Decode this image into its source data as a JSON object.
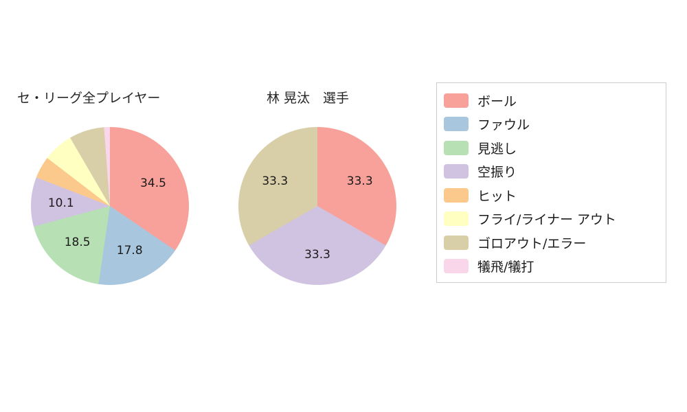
{
  "legend": {
    "items": [
      {
        "label": "ボール",
        "color": "#F8A19A"
      },
      {
        "label": "ファウル",
        "color": "#A8C6DE"
      },
      {
        "label": "見逃し",
        "color": "#B7E1B5"
      },
      {
        "label": "空振り",
        "color": "#D0C3E1"
      },
      {
        "label": "ヒット",
        "color": "#FBC98C"
      },
      {
        "label": "フライ/ライナー アウト",
        "color": "#FFFFC2"
      },
      {
        "label": "ゴロアウト/エラー",
        "color": "#D8CEA8"
      },
      {
        "label": "犠飛/犠打",
        "color": "#FAD6EA"
      }
    ]
  },
  "chart_data": [
    {
      "type": "pie",
      "title": "セ・リーグ全プレイヤー",
      "start_angle": "top",
      "direction": "clockwise",
      "slices": [
        {
          "label": "ボール",
          "value": 34.5,
          "show_value": true
        },
        {
          "label": "ファウル",
          "value": 17.8,
          "show_value": true
        },
        {
          "label": "見逃し",
          "value": 18.5,
          "show_value": true
        },
        {
          "label": "空振り",
          "value": 10.1,
          "show_value": true
        },
        {
          "label": "ヒット",
          "value": 4.5,
          "show_value": false
        },
        {
          "label": "フライ/ライナー アウト",
          "value": 6.2,
          "show_value": false
        },
        {
          "label": "ゴロアウト/エラー",
          "value": 7.2,
          "show_value": false
        },
        {
          "label": "犠飛/犠打",
          "value": 1.2,
          "show_value": false
        }
      ]
    },
    {
      "type": "pie",
      "title": "林 晃汰　選手",
      "start_angle": "top",
      "direction": "clockwise",
      "slices": [
        {
          "label": "ボール",
          "value": 33.3,
          "show_value": true
        },
        {
          "label": "空振り",
          "value": 33.3,
          "show_value": true
        },
        {
          "label": "ゴロアウト/エラー",
          "value": 33.3,
          "show_value": true
        }
      ]
    }
  ]
}
